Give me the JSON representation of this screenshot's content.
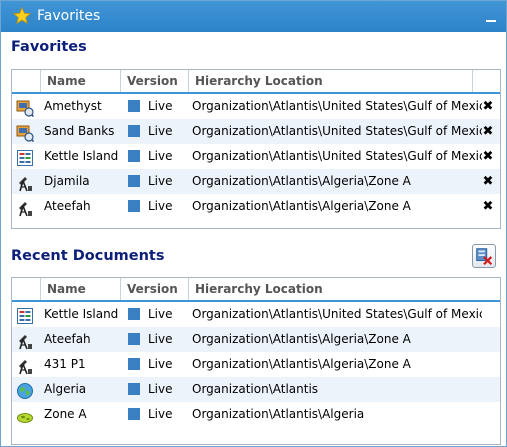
{
  "window": {
    "title": "Favorites"
  },
  "favorites": {
    "heading": "Favorites",
    "columns": {
      "name": "Name",
      "version": "Version",
      "location": "Hierarchy Location"
    },
    "rows": [
      {
        "icon": "sample-box-icon",
        "name": "Amethyst",
        "version": "Live",
        "location": "Organization\\Atlantis\\United States\\Gulf of Mexico"
      },
      {
        "icon": "sample-box-icon",
        "name": "Sand Banks",
        "version": "Live",
        "location": "Organization\\Atlantis\\United States\\Gulf of Mexico"
      },
      {
        "icon": "document-list-icon",
        "name": "Kettle Island",
        "version": "Live",
        "location": "Organization\\Atlantis\\United States\\Gulf of Mexico"
      },
      {
        "icon": "oil-rig-icon",
        "name": "Djamila",
        "version": "Live",
        "location": "Organization\\Atlantis\\Algeria\\Zone A"
      },
      {
        "icon": "oil-rig-icon",
        "name": "Ateefah",
        "version": "Live",
        "location": "Organization\\Atlantis\\Algeria\\Zone A"
      }
    ],
    "remove_glyph": "✖"
  },
  "recent": {
    "heading": "Recent Documents",
    "columns": {
      "name": "Name",
      "version": "Version",
      "location": "Hierarchy Location"
    },
    "rows": [
      {
        "icon": "document-list-icon",
        "name": "Kettle Island",
        "version": "Live",
        "location": "Organization\\Atlantis\\United States\\Gulf of Mexico"
      },
      {
        "icon": "oil-rig-icon",
        "name": "Ateefah",
        "version": "Live",
        "location": "Organization\\Atlantis\\Algeria\\Zone A"
      },
      {
        "icon": "oil-rig-icon",
        "name": "431 P1",
        "version": "Live",
        "location": "Organization\\Atlantis\\Algeria\\Zone A"
      },
      {
        "icon": "globe-icon",
        "name": "Algeria",
        "version": "Live",
        "location": "Organization\\Atlantis"
      },
      {
        "icon": "zone-map-icon",
        "name": "Zone A",
        "version": "Live",
        "location": "Organization\\Atlantis\\Algeria"
      }
    ]
  },
  "colors": {
    "titlebar": "#2e83c8",
    "heading": "#0d1f7a",
    "live": "#3a7fc1",
    "row_alt": "#edf3fa"
  }
}
